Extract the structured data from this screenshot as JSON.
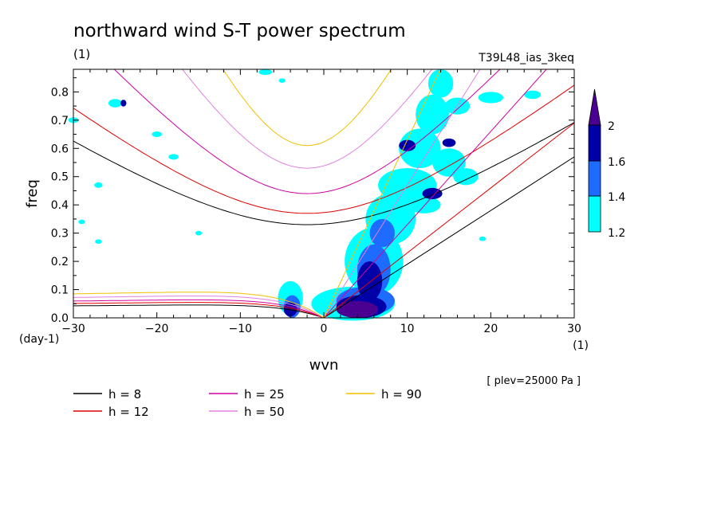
{
  "chart_data": {
    "type": "contour",
    "title": "northward wind S-T power spectrum",
    "subtitle_left": "(1)",
    "subtitle_right": "T39L48_ias_3keq",
    "xlabel": "wvn",
    "ylabel": "freq",
    "x_unit": "(1)",
    "y_unit": "(day-1)",
    "xlim": [
      -30,
      30
    ],
    "ylim": [
      0,
      0.88
    ],
    "x_ticks": [
      "−30",
      "−20",
      "−10",
      "0",
      "10",
      "20",
      "30"
    ],
    "y_ticks": [
      "0.0",
      "0.1",
      "0.2",
      "0.3",
      "0.4",
      "0.5",
      "0.6",
      "0.7",
      "0.8"
    ],
    "annotation": "[ plev=25000 Pa ]",
    "colorbar": {
      "levels": [
        "1.2",
        "1.4",
        "1.6",
        "2"
      ],
      "colors": [
        "#00ffff",
        "#1e6bff",
        "#0000a8",
        "#4a0090"
      ]
    },
    "legend": [
      {
        "label": "h =  8",
        "color": "#000000"
      },
      {
        "label": "h = 12",
        "color": "#e00000"
      },
      {
        "label": "h = 25",
        "color": "#d000a0"
      },
      {
        "label": "h = 50",
        "color": "#e080e0"
      },
      {
        "label": "h = 90",
        "color": "#f0c000"
      }
    ],
    "dispersion_curves": [
      {
        "h": 8,
        "color": "#000000",
        "mrg_peak": 0.05,
        "ig_min": 0.33,
        "kelvin_slope": 0.019
      },
      {
        "h": 12,
        "color": "#e00000",
        "mrg_peak": 0.06,
        "ig_min": 0.37,
        "kelvin_slope": 0.023
      },
      {
        "h": 25,
        "color": "#d000a0",
        "mrg_peak": 0.07,
        "ig_min": 0.44,
        "kelvin_slope": 0.033
      },
      {
        "h": 50,
        "color": "#e080e0",
        "mrg_peak": 0.085,
        "ig_min": 0.53,
        "kelvin_slope": 0.047
      },
      {
        "h": 90,
        "color": "#f0c000",
        "mrg_peak": 0.1,
        "ig_min": 0.61,
        "kelvin_slope": 0.063
      }
    ]
  }
}
